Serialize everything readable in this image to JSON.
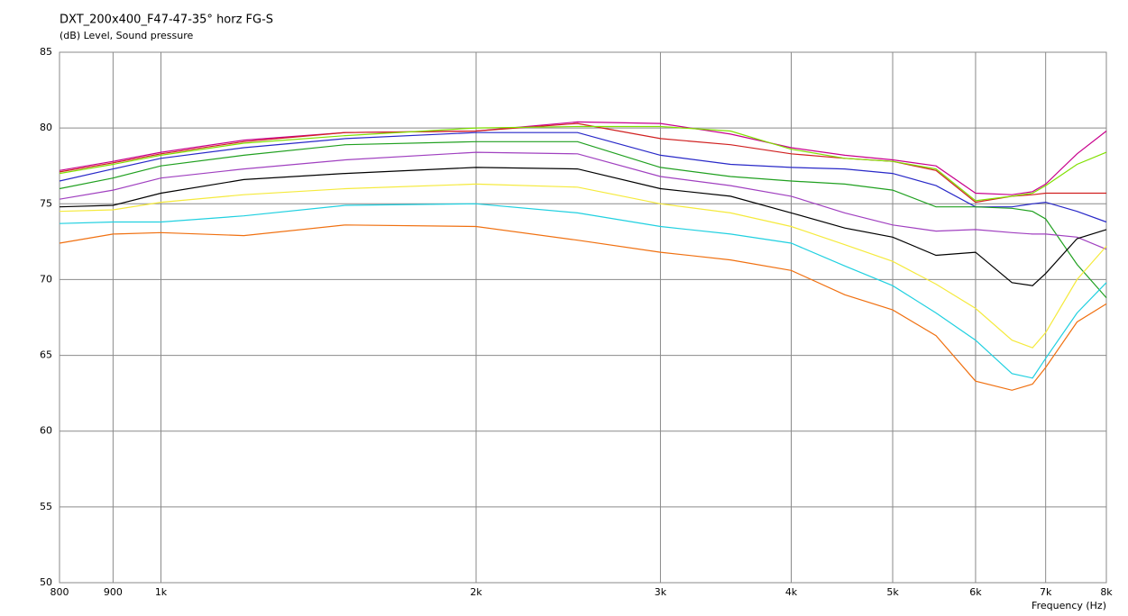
{
  "chart_data": {
    "type": "line",
    "title": "DXT_200x400_F47-47-35° horz FG-S",
    "y_label": "(dB)  Level, Sound pressure",
    "x_label": "Frequency (Hz)",
    "x_scale": "log",
    "grid": true,
    "x": [
      800,
      900,
      1000,
      1200,
      1500,
      2000,
      2500,
      3000,
      3500,
      4000,
      4500,
      5000,
      5500,
      6000,
      6500,
      6800,
      7000,
      7500,
      8000
    ],
    "xlim": [
      800,
      8000
    ],
    "xticks": [
      800,
      900,
      {
        "value": 1000,
        "label": "1k"
      },
      {
        "value": 2000,
        "label": "2k"
      },
      {
        "value": 3000,
        "label": "3k"
      },
      {
        "value": 4000,
        "label": "4k"
      },
      {
        "value": 5000,
        "label": "5k"
      },
      {
        "value": 6000,
        "label": "6k"
      },
      {
        "value": 7000,
        "label": "7k"
      },
      {
        "value": 8000,
        "label": "8k"
      }
    ],
    "ylim": [
      50,
      85
    ],
    "yticks": [
      50,
      55,
      60,
      65,
      70,
      75,
      80,
      85
    ],
    "series": [
      {
        "color": "#c8008c",
        "values": [
          77.2,
          77.8,
          78.4,
          79.2,
          79.7,
          79.8,
          80.4,
          80.3,
          79.6,
          78.7,
          78.2,
          77.9,
          77.5,
          75.7,
          75.6,
          75.8,
          76.3,
          78.3,
          79.8
        ]
      },
      {
        "color": "#d02020",
        "values": [
          77.1,
          77.7,
          78.3,
          79.1,
          79.7,
          79.8,
          80.3,
          79.3,
          78.9,
          78.3,
          78.0,
          77.8,
          77.2,
          75.1,
          75.5,
          75.6,
          75.7,
          75.7,
          75.7
        ]
      },
      {
        "color": "#80e000",
        "values": [
          77.0,
          77.6,
          78.2,
          79.0,
          79.5,
          80.0,
          80.1,
          80.1,
          79.8,
          78.6,
          78.0,
          77.8,
          77.3,
          75.2,
          75.5,
          75.7,
          76.2,
          77.6,
          78.4
        ]
      },
      {
        "color": "#2828c8",
        "values": [
          76.5,
          77.3,
          78.0,
          78.7,
          79.3,
          79.7,
          79.7,
          78.2,
          77.6,
          77.4,
          77.3,
          77.0,
          76.2,
          74.8,
          74.8,
          75.0,
          75.1,
          74.5,
          73.8
        ]
      },
      {
        "color": "#20a020",
        "values": [
          76.0,
          76.7,
          77.5,
          78.2,
          78.9,
          79.1,
          79.1,
          77.4,
          76.8,
          76.5,
          76.3,
          75.9,
          74.8,
          74.8,
          74.7,
          74.5,
          74.0,
          71.0,
          68.8
        ]
      },
      {
        "color": "#a040c0",
        "values": [
          75.3,
          75.9,
          76.7,
          77.3,
          77.9,
          78.4,
          78.3,
          76.8,
          76.2,
          75.5,
          74.4,
          73.6,
          73.2,
          73.3,
          73.1,
          73.0,
          73.0,
          72.8,
          72.0
        ]
      },
      {
        "color": "#000000",
        "values": [
          74.8,
          74.9,
          75.7,
          76.6,
          77.0,
          77.4,
          77.3,
          76.0,
          75.5,
          74.4,
          73.4,
          72.8,
          71.6,
          71.8,
          69.8,
          69.6,
          70.4,
          72.7,
          73.3
        ]
      },
      {
        "color": "#f5ea3c",
        "values": [
          74.5,
          74.6,
          75.1,
          75.6,
          76.0,
          76.3,
          76.1,
          75.0,
          74.4,
          73.5,
          72.3,
          71.2,
          69.7,
          68.1,
          66.0,
          65.5,
          66.5,
          70.0,
          72.2
        ]
      },
      {
        "color": "#20d0e0",
        "values": [
          73.7,
          73.8,
          73.8,
          74.2,
          74.9,
          75.0,
          74.4,
          73.5,
          73.0,
          72.4,
          70.9,
          69.6,
          67.8,
          66.0,
          63.8,
          63.5,
          64.8,
          67.8,
          69.8
        ]
      },
      {
        "color": "#f07010",
        "values": [
          72.4,
          73.0,
          73.1,
          72.9,
          73.6,
          73.5,
          72.6,
          71.8,
          71.3,
          70.6,
          69.0,
          68.0,
          66.3,
          63.3,
          62.7,
          63.1,
          64.2,
          67.2,
          68.4
        ]
      }
    ]
  }
}
